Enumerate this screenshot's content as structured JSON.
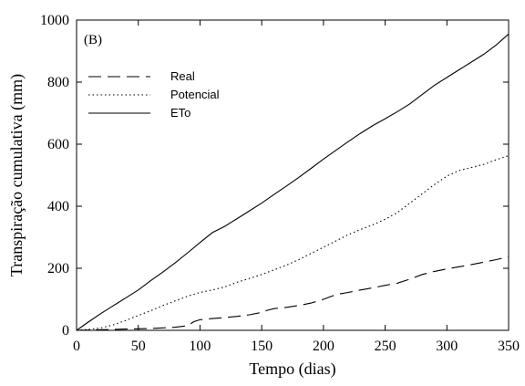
{
  "chart_data": {
    "type": "line",
    "panel_label": "(B)",
    "xlabel": "Tempo (dias)",
    "ylabel": "Transpiração cumulativa (mm)",
    "xlim": [
      0,
      350
    ],
    "ylim": [
      0,
      1000
    ],
    "xticks": [
      0,
      50,
      100,
      150,
      200,
      250,
      300,
      350
    ],
    "yticks": [
      0,
      200,
      400,
      600,
      800,
      1000
    ],
    "grid": false,
    "legend_position": "top-left",
    "series": [
      {
        "name": "Real",
        "style": "dashed",
        "x": [
          0,
          10,
          20,
          30,
          40,
          50,
          60,
          70,
          80,
          90,
          95,
          100,
          110,
          120,
          130,
          140,
          150,
          155,
          160,
          170,
          180,
          190,
          200,
          210,
          220,
          230,
          240,
          250,
          260,
          270,
          280,
          290,
          300,
          310,
          320,
          330,
          340,
          350
        ],
        "y": [
          0,
          1,
          2,
          3,
          4,
          5,
          6,
          8,
          10,
          15,
          28,
          34,
          38,
          41,
          45,
          50,
          58,
          65,
          70,
          74,
          80,
          88,
          100,
          115,
          122,
          130,
          137,
          145,
          152,
          165,
          180,
          190,
          198,
          205,
          212,
          220,
          228,
          237
        ]
      },
      {
        "name": "Potencial",
        "style": "dotted",
        "x": [
          0,
          10,
          20,
          30,
          40,
          50,
          60,
          70,
          80,
          90,
          100,
          110,
          120,
          130,
          140,
          150,
          160,
          170,
          180,
          190,
          200,
          210,
          220,
          230,
          240,
          250,
          260,
          270,
          280,
          290,
          300,
          310,
          320,
          330,
          340,
          350
        ],
        "y": [
          0,
          3,
          8,
          18,
          32,
          48,
          63,
          80,
          95,
          110,
          122,
          130,
          140,
          155,
          167,
          180,
          195,
          210,
          228,
          248,
          268,
          288,
          308,
          325,
          340,
          358,
          380,
          410,
          440,
          470,
          497,
          515,
          525,
          535,
          550,
          563
        ]
      },
      {
        "name": "ETo",
        "style": "solid",
        "x": [
          0,
          10,
          20,
          30,
          40,
          50,
          60,
          70,
          80,
          90,
          100,
          110,
          120,
          130,
          140,
          150,
          160,
          170,
          180,
          190,
          200,
          210,
          220,
          230,
          240,
          250,
          260,
          270,
          280,
          290,
          300,
          310,
          320,
          330,
          340,
          350
        ],
        "y": [
          0,
          28,
          55,
          80,
          105,
          130,
          160,
          188,
          218,
          250,
          283,
          315,
          335,
          360,
          385,
          410,
          438,
          465,
          493,
          522,
          552,
          580,
          608,
          635,
          660,
          682,
          705,
          730,
          760,
          790,
          815,
          840,
          865,
          890,
          920,
          955
        ]
      }
    ]
  }
}
